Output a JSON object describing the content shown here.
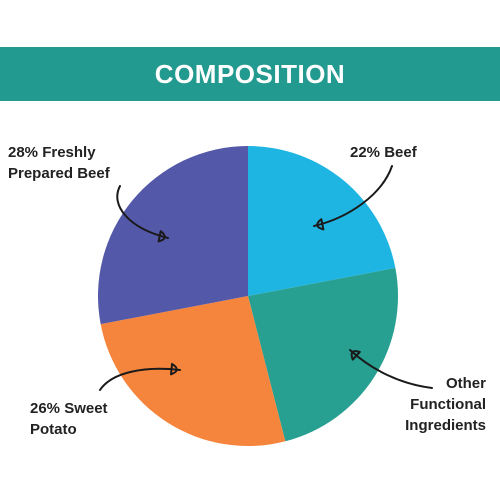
{
  "title": "COMPOSITION",
  "colors": {
    "banner": "#239a8f",
    "arrow": "#1a1a1a"
  },
  "chart_data": {
    "type": "pie",
    "title": "COMPOSITION",
    "slices": [
      {
        "label_lines": [
          "22% Beef"
        ],
        "value": 22,
        "color": "#1fb5e3"
      },
      {
        "label_lines": [
          "Other",
          "Functional",
          "Ingredients"
        ],
        "value": 24,
        "color": "#279f91"
      },
      {
        "label_lines": [
          "26% Sweet",
          "Potato"
        ],
        "value": 26,
        "color": "#f5843c"
      },
      {
        "label_lines": [
          "28% Freshly",
          "Prepared Beef"
        ],
        "value": 28,
        "color": "#5458a8"
      }
    ]
  }
}
